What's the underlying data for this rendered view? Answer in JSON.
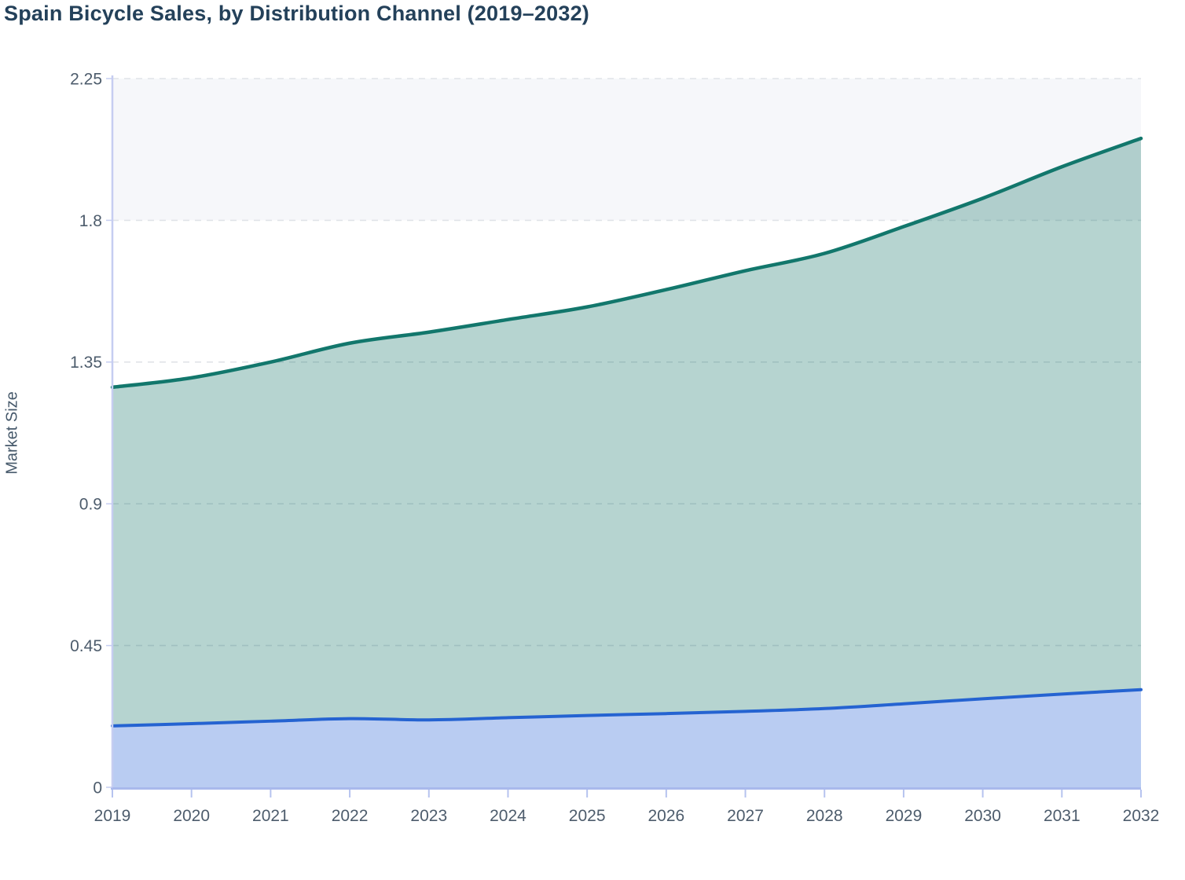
{
  "chart_data": {
    "type": "area",
    "stacked": true,
    "title": "Spain Bicycle Sales, by Distribution Channel (2019–2032)",
    "ylabel": "Market Size",
    "xlabel": "",
    "legend": "none",
    "grid": "horizontal dashed",
    "x": [
      2019,
      2020,
      2021,
      2022,
      2023,
      2024,
      2025,
      2026,
      2027,
      2028,
      2029,
      2030,
      2031,
      2032
    ],
    "xtick_labels": [
      "2019",
      "2020",
      "2021",
      "2022",
      "2023",
      "2024",
      "2025",
      "2026",
      "2027",
      "2028",
      "2029",
      "2030",
      "2031",
      "2032"
    ],
    "ylim": [
      0,
      2.25
    ],
    "ytick_values": [
      0,
      0.45,
      0.9,
      1.35,
      1.8,
      2.25
    ],
    "ytick_labels": [
      "0",
      "0.45",
      "0.9",
      "1.35",
      "1.8",
      "2.25"
    ],
    "series": [
      {
        "role": "lower-blue-area",
        "line_color": "#2563d1",
        "fill_color": "rgba(37,95,215,0.32)",
        "values": [
          0.195,
          0.202,
          0.21,
          0.218,
          0.214,
          0.221,
          0.228,
          0.234,
          0.241,
          0.25,
          0.265,
          0.281,
          0.296,
          0.31
        ]
      },
      {
        "role": "upper-teal-area",
        "line_color": "#12776c",
        "fill_color": "rgba(20,116,104,0.31)",
        "values": [
          1.075,
          1.098,
          1.14,
          1.192,
          1.231,
          1.264,
          1.297,
          1.346,
          1.399,
          1.445,
          1.515,
          1.589,
          1.674,
          1.75
        ]
      }
    ],
    "stacked_totals": [
      1.27,
      1.3,
      1.35,
      1.41,
      1.445,
      1.485,
      1.525,
      1.58,
      1.64,
      1.695,
      1.78,
      1.87,
      1.97,
      2.06
    ],
    "band": {
      "from": 1.8,
      "to": 2.25,
      "color": "#f6f7fa"
    },
    "colors": {
      "title_text": "#24415a",
      "tick_text": "#4d5c6c",
      "axis_title_text": "#45586a",
      "gridline": "#e0e3e8",
      "y_axis_line": "#c6cdf1",
      "x_axis_line": "#a9b9ec",
      "tick_mark": "#b6c3ef"
    }
  }
}
